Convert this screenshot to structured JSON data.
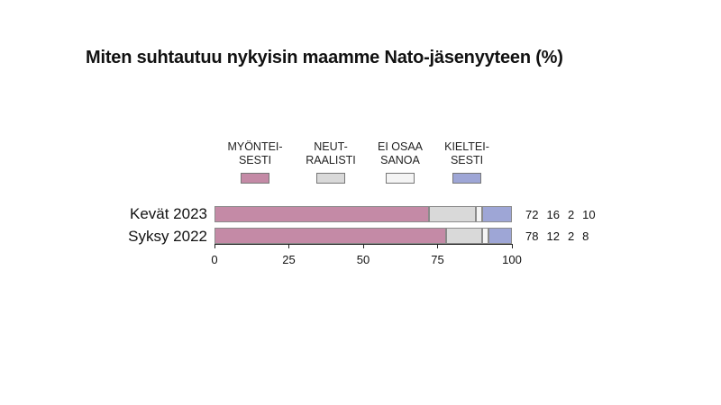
{
  "title": "Miten suhtautuu nykyisin maamme Nato-jäsenyyteen (%)",
  "legend": [
    {
      "label": "MYÖNTEI-\nSESTI",
      "color": "#c48aa6",
      "icon": "legend-swatch"
    },
    {
      "label": "NEUT-\nRAALISTI",
      "color": "#d9d9d9",
      "icon": "legend-swatch"
    },
    {
      "label": "EI OSAA\nSANOA",
      "color": "#f4f4f4",
      "icon": "legend-swatch"
    },
    {
      "label": "KIELTEI-\nSESTI",
      "color": "#9ea6d6",
      "icon": "legend-swatch"
    }
  ],
  "chart_data": {
    "type": "bar",
    "orientation": "horizontal-stacked",
    "title": "Miten suhtautuu nykyisin maamme Nato-jäsenyyteen (%)",
    "categories": [
      "Kevät 2023",
      "Syksy 2022"
    ],
    "series": [
      {
        "name": "MYÖNTEISESTI",
        "values": [
          72,
          78
        ]
      },
      {
        "name": "NEUTRAALISTI",
        "values": [
          16,
          12
        ]
      },
      {
        "name": "EI OSAA SANOA",
        "values": [
          2,
          2
        ]
      },
      {
        "name": "KIELTEISESTI",
        "values": [
          10,
          8
        ]
      }
    ],
    "xlim": [
      0,
      100
    ],
    "xticks": [
      "0",
      "25",
      "50",
      "75",
      "100"
    ],
    "grid": false,
    "legend_position": "top"
  }
}
